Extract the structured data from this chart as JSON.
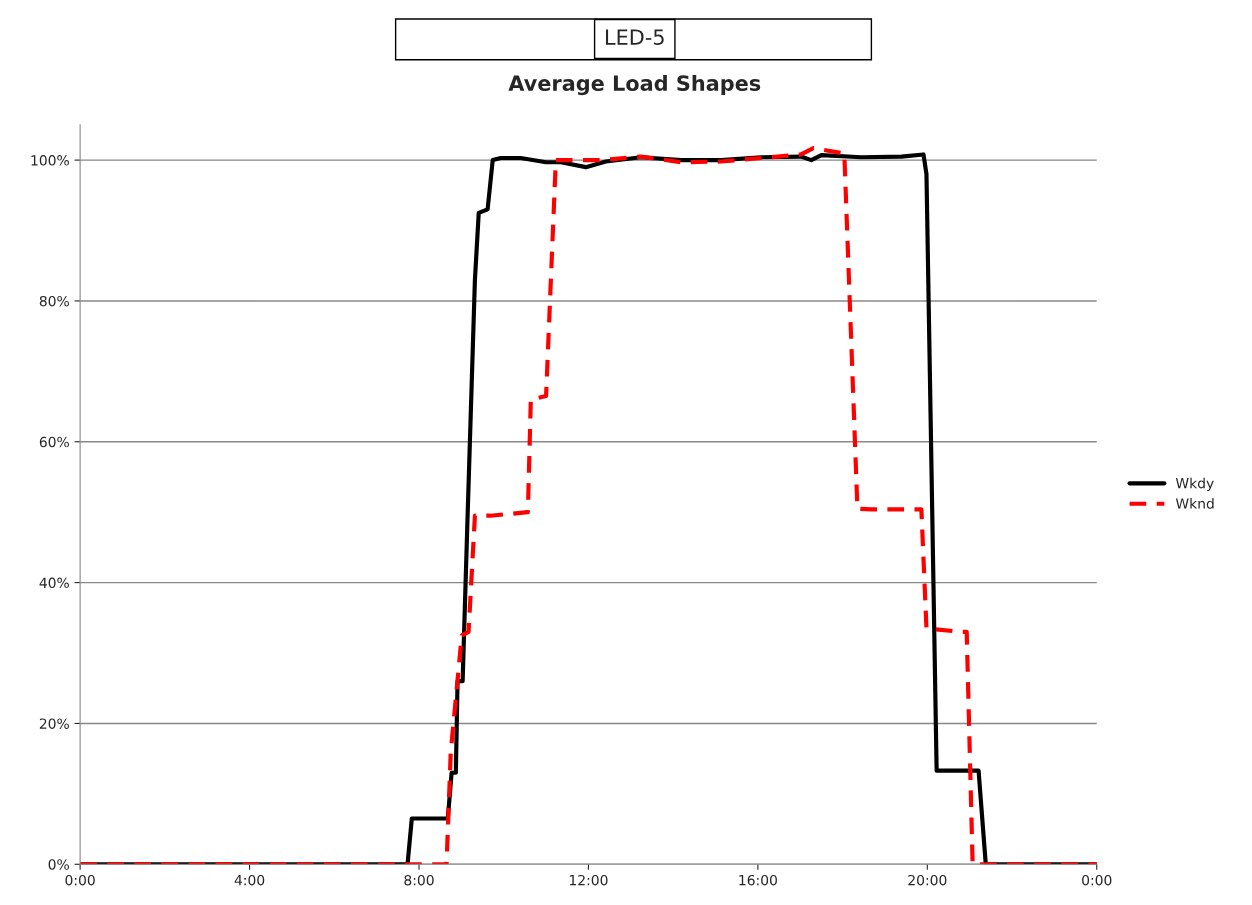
{
  "chart_data": {
    "type": "line",
    "title": "LED-5",
    "subtitle": "Average Load Shapes",
    "xlim": [
      0,
      24
    ],
    "xticks": [
      {
        "value": 0,
        "label": "0:00"
      },
      {
        "value": 4,
        "label": "4:00"
      },
      {
        "value": 8,
        "label": "8:00"
      },
      {
        "value": 12,
        "label": "12:00"
      },
      {
        "value": 16,
        "label": "16:00"
      },
      {
        "value": 20,
        "label": "20:00"
      },
      {
        "value": 24,
        "label": "0:00"
      }
    ],
    "ylim": [
      0,
      105
    ],
    "yticks": [
      {
        "value": 0,
        "label": "0%"
      },
      {
        "value": 20,
        "label": "20%"
      },
      {
        "value": 40,
        "label": "40%"
      },
      {
        "value": 60,
        "label": "60%"
      },
      {
        "value": 80,
        "label": "80%"
      },
      {
        "value": 100,
        "label": "100%"
      }
    ],
    "grid": "y",
    "legend": "right",
    "series": [
      {
        "name": "Wkdy",
        "color": "#000000",
        "line_style": "solid",
        "x": [
          0,
          7.73,
          7.83,
          8.68,
          8.77,
          8.87,
          8.91,
          9.03,
          9.15,
          9.32,
          9.41,
          9.62,
          9.74,
          9.93,
          10.4,
          11.0,
          11.35,
          11.94,
          12.41,
          13.24,
          14.19,
          15.13,
          16.08,
          17.02,
          17.26,
          17.5,
          18.44,
          19.39,
          19.91,
          19.98,
          20.22,
          20.57,
          21.21,
          21.38,
          24
        ],
        "values": [
          0,
          0,
          6.5,
          6.5,
          13,
          13,
          26,
          26,
          50,
          83,
          92.5,
          93,
          100,
          100.3,
          100.3,
          99.7,
          99.7,
          99,
          99.8,
          100.4,
          100,
          100,
          100.4,
          100.5,
          100,
          100.7,
          100.4,
          100.5,
          100.8,
          98,
          13.3,
          13.3,
          13.3,
          0,
          0
        ]
      },
      {
        "name": "Wknd",
        "color": "#ff0000",
        "line_style": "dashed",
        "x": [
          0,
          8.65,
          8.75,
          9.01,
          9.17,
          9.32,
          9.69,
          10.57,
          10.64,
          11.0,
          11.23,
          12.3,
          13.24,
          14.19,
          15.13,
          16.08,
          17.02,
          17.31,
          17.97,
          18.04,
          18.35,
          18.68,
          19.86,
          19.98,
          20.81,
          20.93,
          21.07,
          24
        ],
        "values": [
          0,
          0,
          16,
          32.5,
          33,
          49.5,
          49.5,
          50,
          66,
          66.5,
          100,
          100,
          100.5,
          99.7,
          99.8,
          100.3,
          100.8,
          101.7,
          101,
          101,
          50.5,
          50.4,
          50.4,
          33.5,
          33,
          33,
          0,
          0
        ]
      }
    ]
  }
}
